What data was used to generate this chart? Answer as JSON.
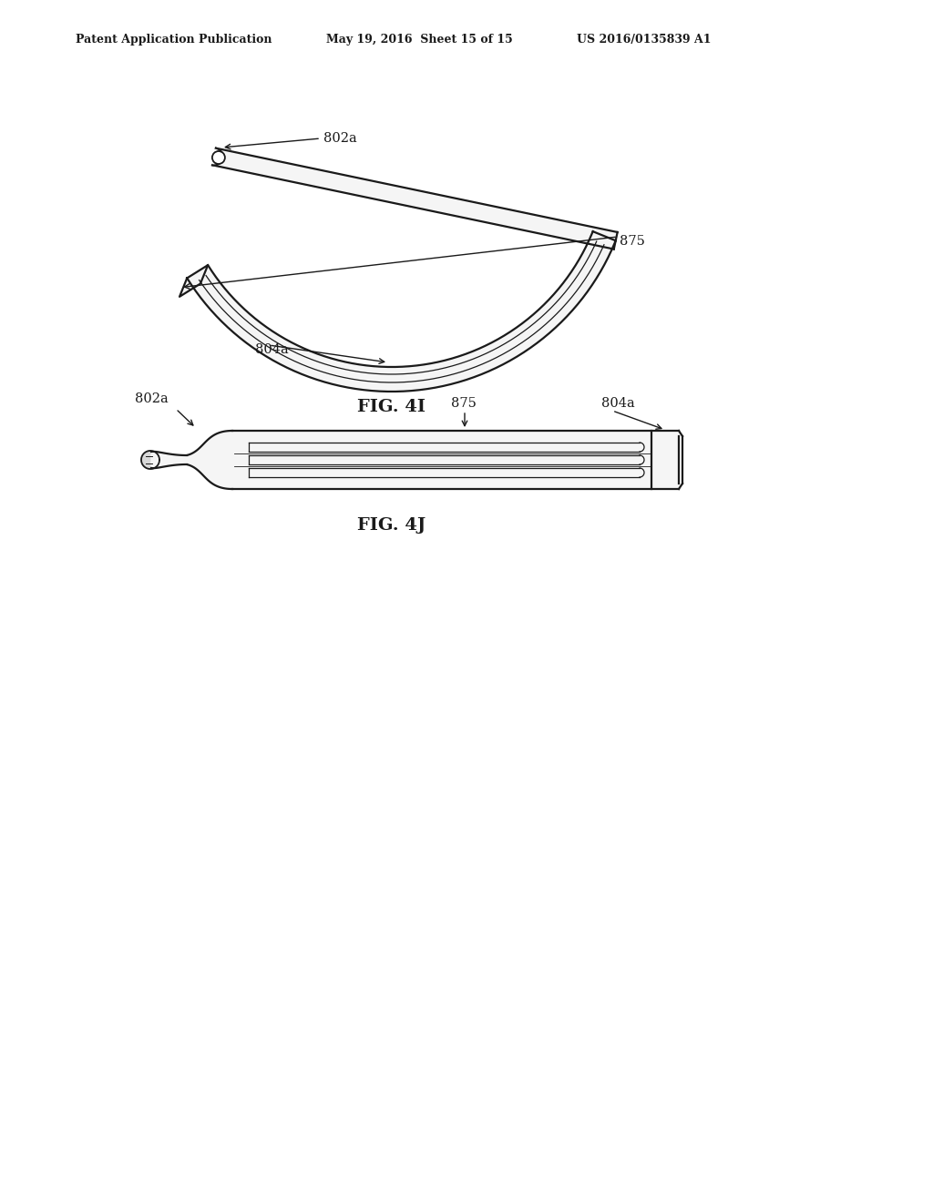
{
  "bg_color": "#ffffff",
  "line_color": "#1a1a1a",
  "header_left": "Patent Application Publication",
  "header_mid": "May 19, 2016  Sheet 15 of 15",
  "header_right": "US 2016/0135839 A1",
  "fig4i_label": "FIG. 4I",
  "fig4j_label": "FIG. 4J",
  "label_802a_fig4i": "802a",
  "label_875_fig4i": "875",
  "label_804a_fig4i": "804a",
  "label_802a_fig4j": "802a",
  "label_875_fig4j": "875",
  "label_804a_fig4j": "804a"
}
